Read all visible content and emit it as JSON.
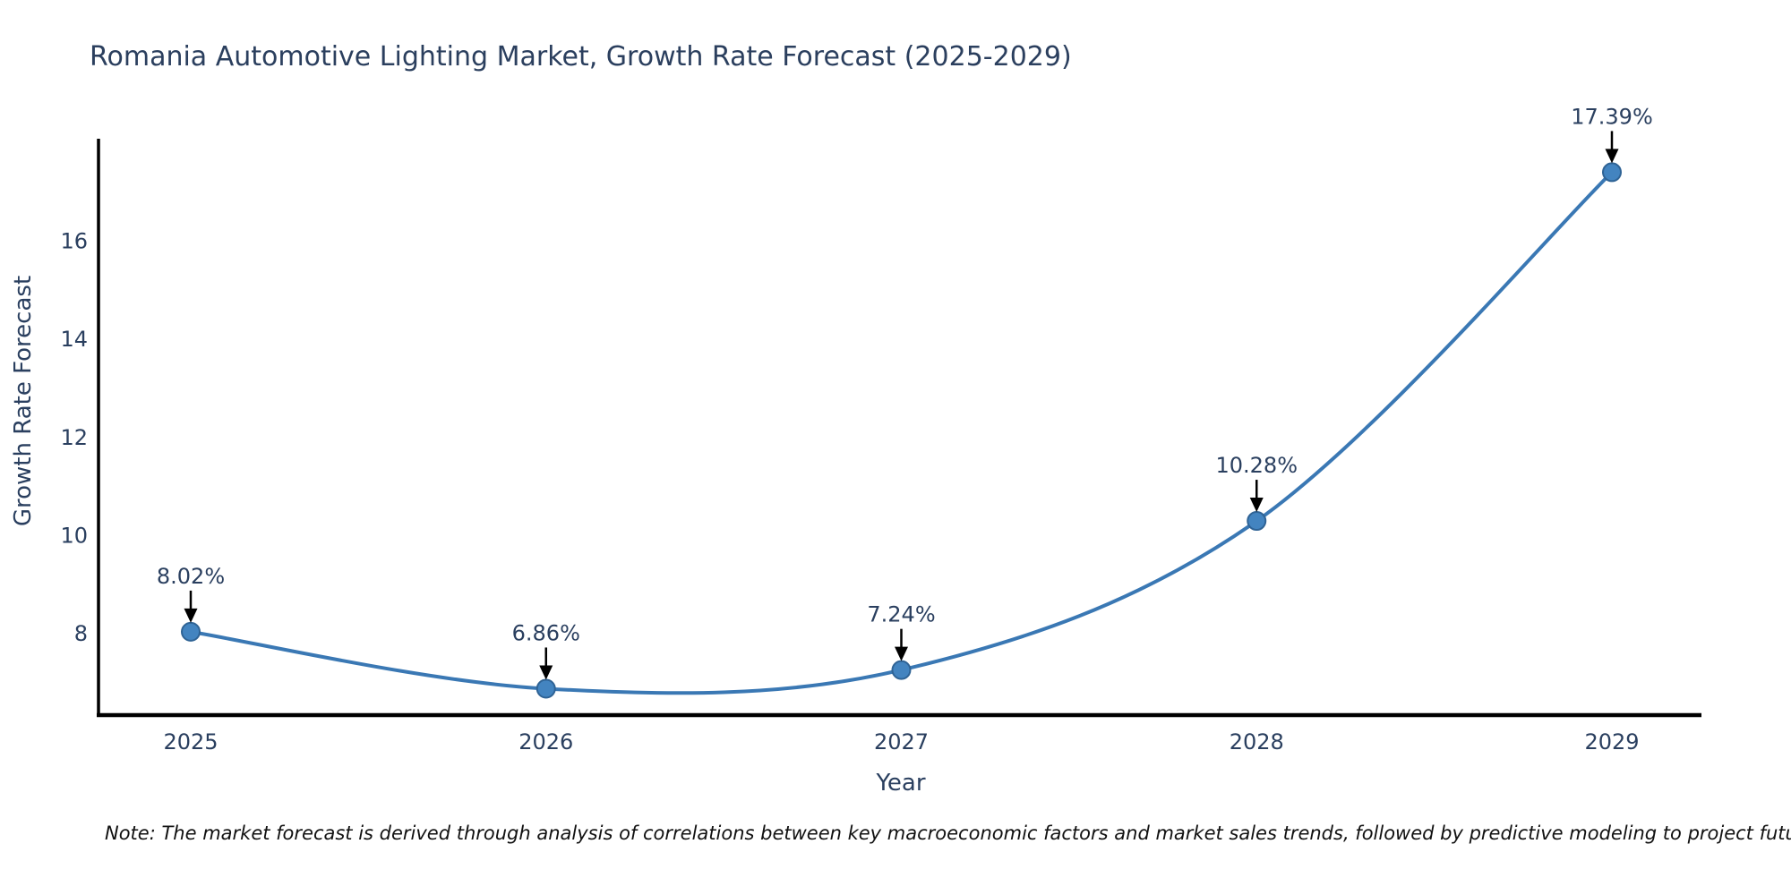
{
  "note": "Note: The market forecast is derived through analysis of correlations between key macroeconomic factors and market sales trends, followed by predictive modeling to project future sales",
  "chart_data": {
    "type": "line",
    "line_shape": "spline",
    "title": "Romania Automotive Lighting Market, Growth Rate Forecast (2025-2029)",
    "xlabel": "Year",
    "ylabel": "Growth Rate Forecast",
    "x": [
      2025,
      2026,
      2027,
      2028,
      2029
    ],
    "values": [
      8.02,
      6.86,
      7.24,
      10.28,
      17.39
    ],
    "point_labels": [
      "8.02%",
      "6.86%",
      "7.24%",
      "10.28%",
      "17.39%"
    ],
    "xticks": [
      "2025",
      "2026",
      "2027",
      "2028",
      "2029"
    ],
    "yticks": [
      8,
      10,
      12,
      14,
      16
    ],
    "xlim": [
      2024.74,
      2029.26
    ],
    "ylim": [
      6.35,
      18.15
    ],
    "grid": false,
    "legend": "none",
    "markers": true,
    "annotation_arrows": true,
    "colors": {
      "line": "#3a78b4",
      "marker_fill": "#4384c0",
      "marker_edge": "#2f6395",
      "text": "#2a3f5f",
      "axis": "#000000",
      "arrow": "#000000",
      "note_text": "#111111",
      "background": "#ffffff"
    }
  }
}
